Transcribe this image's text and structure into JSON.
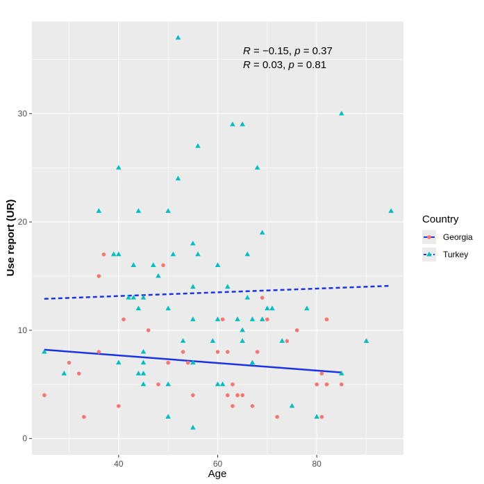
{
  "chart_data": {
    "type": "scatter",
    "xlabel": "Age",
    "ylabel": "Use report (UR)",
    "xlim": [
      22.5,
      97.5
    ],
    "ylim": [
      -1.5,
      38.5
    ],
    "x_ticks": [
      40,
      60,
      80
    ],
    "y_ticks": [
      0,
      10,
      20,
      30
    ],
    "grid": true,
    "legend": {
      "title": "Country",
      "position": "right"
    },
    "annotations": [
      {
        "R_label": "R",
        "R_value": " = −0.15, ",
        "p_label": "p",
        "p_value": " = 0.37"
      },
      {
        "R_label": "R",
        "R_value": " = 0.03, ",
        "p_label": "p",
        "p_value": " = 0.81"
      }
    ],
    "series": [
      {
        "name": "Georgia",
        "color": "#F8766D",
        "marker": "circle",
        "line_color": "#1a33e6",
        "line_style": "solid",
        "trend": {
          "x": [
            25,
            85
          ],
          "y": [
            8.2,
            6.1
          ]
        },
        "points": [
          [
            25,
            4
          ],
          [
            30,
            7
          ],
          [
            32,
            6
          ],
          [
            33,
            2
          ],
          [
            36,
            15
          ],
          [
            36,
            8
          ],
          [
            37,
            17
          ],
          [
            40,
            3
          ],
          [
            41,
            11
          ],
          [
            46,
            10
          ],
          [
            48,
            5
          ],
          [
            49,
            16
          ],
          [
            50,
            7
          ],
          [
            53,
            8
          ],
          [
            54,
            7
          ],
          [
            55,
            4
          ],
          [
            60,
            8
          ],
          [
            61,
            11
          ],
          [
            62,
            8
          ],
          [
            62,
            4
          ],
          [
            63,
            5
          ],
          [
            63,
            3
          ],
          [
            64,
            4
          ],
          [
            65,
            4
          ],
          [
            67,
            3
          ],
          [
            68,
            8
          ],
          [
            69,
            13
          ],
          [
            70,
            11
          ],
          [
            72,
            2
          ],
          [
            74,
            9
          ],
          [
            76,
            10
          ],
          [
            80,
            5
          ],
          [
            81,
            2
          ],
          [
            81,
            6
          ],
          [
            82,
            5
          ],
          [
            82,
            11
          ],
          [
            85,
            5
          ]
        ]
      },
      {
        "name": "Turkey",
        "color": "#00BFC4",
        "marker": "triangle",
        "line_color": "#1a33e6",
        "line_style": "dashed",
        "trend": {
          "x": [
            25,
            95
          ],
          "y": [
            12.9,
            14.1
          ]
        },
        "points": [
          [
            25,
            8
          ],
          [
            29,
            6
          ],
          [
            36,
            21
          ],
          [
            39,
            17
          ],
          [
            40,
            17
          ],
          [
            40,
            25
          ],
          [
            40,
            7
          ],
          [
            42,
            13
          ],
          [
            43,
            16
          ],
          [
            43,
            13
          ],
          [
            44,
            21
          ],
          [
            44,
            12
          ],
          [
            44,
            6
          ],
          [
            45,
            6
          ],
          [
            45,
            5
          ],
          [
            45,
            7
          ],
          [
            45,
            8
          ],
          [
            45,
            13
          ],
          [
            47,
            16
          ],
          [
            48,
            15
          ],
          [
            50,
            21
          ],
          [
            50,
            12
          ],
          [
            50,
            5
          ],
          [
            50,
            2
          ],
          [
            51,
            17
          ],
          [
            52,
            37
          ],
          [
            52,
            24
          ],
          [
            53,
            9
          ],
          [
            55,
            18
          ],
          [
            55,
            14
          ],
          [
            55,
            11
          ],
          [
            55,
            7
          ],
          [
            55,
            1
          ],
          [
            56,
            27
          ],
          [
            56,
            17
          ],
          [
            59,
            9
          ],
          [
            60,
            16
          ],
          [
            60,
            11
          ],
          [
            60,
            5
          ],
          [
            61,
            5
          ],
          [
            62,
            14
          ],
          [
            63,
            29
          ],
          [
            64,
            11
          ],
          [
            65,
            29
          ],
          [
            65,
            10
          ],
          [
            65,
            9
          ],
          [
            66,
            17
          ],
          [
            66,
            13
          ],
          [
            67,
            11
          ],
          [
            67,
            7
          ],
          [
            68,
            25
          ],
          [
            69,
            19
          ],
          [
            69,
            11
          ],
          [
            70,
            12
          ],
          [
            71,
            12
          ],
          [
            73,
            9
          ],
          [
            75,
            3
          ],
          [
            78,
            12
          ],
          [
            80,
            2
          ],
          [
            85,
            30
          ],
          [
            85,
            6
          ],
          [
            90,
            9
          ],
          [
            95,
            21
          ]
        ]
      }
    ]
  }
}
